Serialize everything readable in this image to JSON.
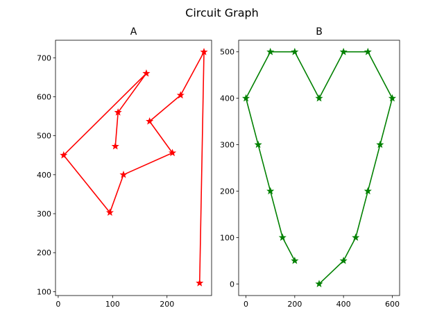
{
  "figure": {
    "suptitle": "Circuit Graph"
  },
  "chart_data": [
    {
      "type": "line",
      "title": "A",
      "xlabel": "",
      "ylabel": "",
      "xlim": [
        -5,
        282
      ],
      "ylim": [
        90,
        745
      ],
      "xticks": [
        0,
        100,
        200
      ],
      "yticks": [
        100,
        200,
        300,
        400,
        500,
        600,
        700
      ],
      "grid": false,
      "series": [
        {
          "color": "#ff0000",
          "marker": "star",
          "x": [
            105,
            110,
            162,
            10,
            95,
            120,
            210,
            168,
            225,
            268,
            260
          ],
          "y": [
            473,
            560,
            660,
            450,
            303,
            400,
            456,
            537,
            604,
            715,
            122
          ]
        }
      ]
    },
    {
      "type": "line",
      "title": "B",
      "xlabel": "",
      "ylabel": "",
      "xlim": [
        -30,
        630
      ],
      "ylim": [
        -25,
        525
      ],
      "xticks": [
        0,
        200,
        400,
        600
      ],
      "yticks": [
        0,
        100,
        200,
        300,
        400,
        500
      ],
      "grid": false,
      "series": [
        {
          "color": "#008000",
          "marker": "star",
          "x": [
            200,
            150,
            100,
            50,
            0,
            100,
            200,
            300,
            400,
            500,
            600,
            550,
            500,
            450,
            400,
            300
          ],
          "y": [
            50,
            100,
            200,
            300,
            400,
            500,
            500,
            400,
            500,
            500,
            400,
            300,
            200,
            100,
            50,
            0
          ]
        }
      ]
    }
  ]
}
